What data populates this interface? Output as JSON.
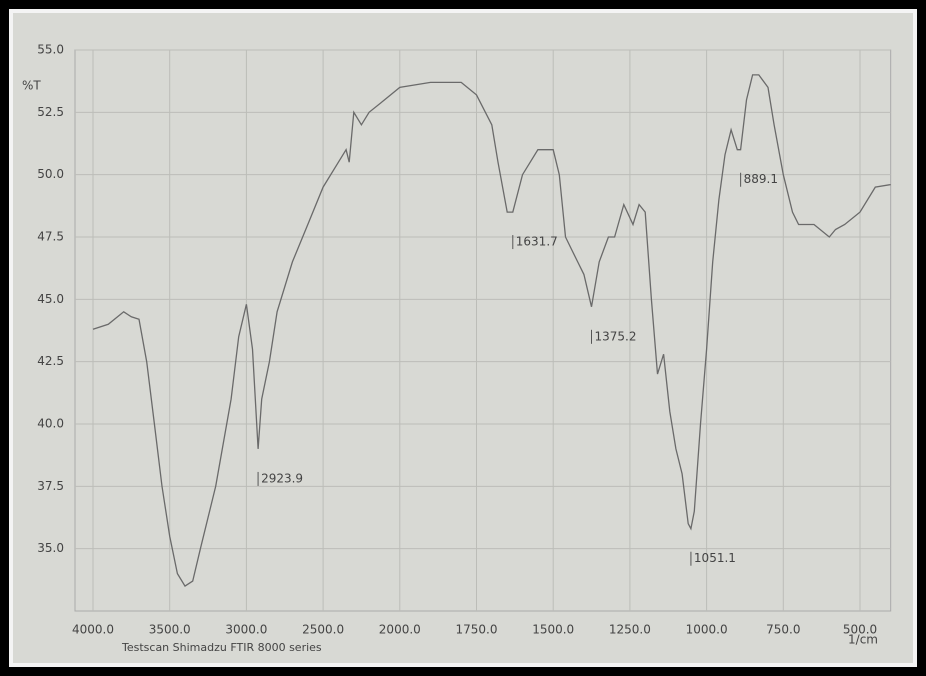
{
  "chart_data": {
    "type": "line",
    "y_label": "%T",
    "x_label": "1/cm",
    "footer": "Testscan Shimadzu FTIR 8000 series",
    "color": "#6a6a6a",
    "grid": true,
    "x": [
      4000,
      3900,
      3800,
      3750,
      3700,
      3650,
      3600,
      3550,
      3500,
      3450,
      3400,
      3350,
      3300,
      3200,
      3100,
      3050,
      3000,
      2960,
      2923.9,
      2900,
      2850,
      2800,
      2700,
      2600,
      2500,
      2400,
      2350,
      2330,
      2300,
      2250,
      2200,
      2100,
      2000,
      1900,
      1800,
      1750,
      1700,
      1680,
      1650,
      1631.7,
      1600,
      1550,
      1500,
      1480,
      1460,
      1440,
      1420,
      1400,
      1375.2,
      1350,
      1320,
      1300,
      1270,
      1240,
      1220,
      1200,
      1180,
      1160,
      1140,
      1120,
      1100,
      1080,
      1060,
      1051.1,
      1040,
      1020,
      1000,
      980,
      960,
      940,
      920,
      900,
      889.1,
      870,
      850,
      830,
      800,
      780,
      750,
      720,
      700,
      650,
      600,
      580,
      550,
      500,
      450,
      400
    ],
    "values": [
      43.8,
      44.0,
      44.5,
      44.3,
      44.2,
      42.5,
      40,
      37.5,
      35.5,
      34,
      33.5,
      33.7,
      35,
      37.5,
      41,
      43.5,
      44.8,
      43,
      39,
      41,
      42.5,
      44.5,
      46.5,
      48,
      49.5,
      50.5,
      51,
      50.5,
      52.5,
      52,
      52.5,
      53,
      53.5,
      53.7,
      53.7,
      53.2,
      52,
      50.5,
      48.5,
      48.5,
      50,
      51,
      51,
      50,
      47.5,
      47,
      46.5,
      46,
      44.7,
      46.5,
      47.5,
      47.5,
      48.8,
      48,
      48.8,
      48.5,
      45,
      42,
      42.8,
      40.5,
      39,
      38,
      36,
      35.8,
      36.5,
      40,
      43,
      46.5,
      49,
      50.8,
      51.8,
      51,
      51,
      53,
      54,
      54,
      53.5,
      52,
      50,
      48.5,
      48,
      48,
      47.5,
      47.8,
      48,
      48.5,
      49.5,
      49.6
    ],
    "xlim": [
      4000,
      400
    ],
    "ylim": [
      32.5,
      55
    ],
    "xticks": [
      {
        "value": 4000,
        "label": "4000.0"
      },
      {
        "value": 3500,
        "label": "3500.0"
      },
      {
        "value": 3000,
        "label": "3000.0"
      },
      {
        "value": 2500,
        "label": "2500.0"
      },
      {
        "value": 2000,
        "label": "2000.0"
      },
      {
        "value": 1750,
        "label": "1750.0"
      },
      {
        "value": 1500,
        "label": "1500.0"
      },
      {
        "value": 1250,
        "label": "1250.0"
      },
      {
        "value": 1000,
        "label": "1000.0"
      },
      {
        "value": 750,
        "label": "750.0"
      },
      {
        "value": 500,
        "label": "500.0"
      }
    ],
    "yticks": [
      {
        "value": 35,
        "label": "35.0"
      },
      {
        "value": 37.5,
        "label": "37.5"
      },
      {
        "value": 40,
        "label": "40.0"
      },
      {
        "value": 42.5,
        "label": "42.5"
      },
      {
        "value": 45,
        "label": "45.0"
      },
      {
        "value": 47.5,
        "label": "47.5"
      },
      {
        "value": 50,
        "label": "50.0"
      },
      {
        "value": 52.5,
        "label": "52.5"
      },
      {
        "value": 55,
        "label": "55.0"
      }
    ],
    "annotations": [
      {
        "x": 2923.9,
        "y": 39,
        "label": "2923.9"
      },
      {
        "x": 1631.7,
        "y": 48.5,
        "label": "1631.7"
      },
      {
        "x": 1375.2,
        "y": 44.7,
        "label": "1375.2"
      },
      {
        "x": 1051.1,
        "y": 35.8,
        "label": "1051.1"
      },
      {
        "x": 889.1,
        "y": 51,
        "label": "889.1"
      }
    ]
  }
}
